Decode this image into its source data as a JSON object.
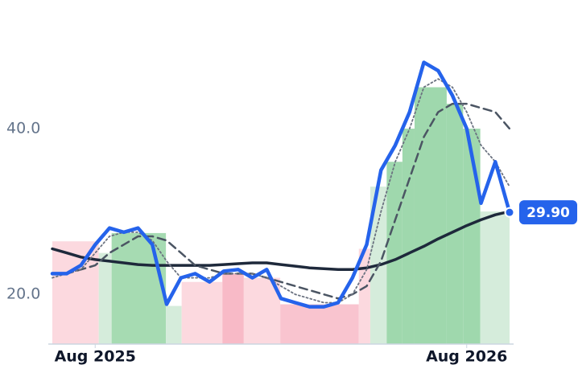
{
  "chart_data": {
    "type": "line",
    "x": [
      0,
      2,
      4,
      6,
      8,
      10,
      12,
      14,
      16,
      18,
      20,
      22,
      24,
      26,
      28,
      30,
      32,
      34,
      36,
      38,
      40,
      42,
      44,
      46,
      48,
      50,
      52,
      54,
      56,
      58,
      60,
      62,
      64
    ],
    "xlim": [
      0,
      64
    ],
    "xticks": [
      {
        "value": 6,
        "label": "Aug 2025"
      },
      {
        "value": 58,
        "label": "Aug 2026"
      }
    ],
    "ylim": [
      14,
      51
    ],
    "yticks": [
      {
        "value": 20,
        "label": "20.0"
      },
      {
        "value": 40,
        "label": "40.0"
      }
    ],
    "grid": false,
    "bands": [
      {
        "start": 0,
        "end": 6.5,
        "value": 26.4,
        "color": "#fcd9df"
      },
      {
        "start": 6.5,
        "end": 8.3,
        "value": 25,
        "color": "#d5ecdb"
      },
      {
        "start": 8.3,
        "end": 15.9,
        "value": 27.4,
        "color": "#a6dbb2"
      },
      {
        "start": 15.9,
        "end": 18.1,
        "value": 18.6,
        "color": "#d5ecdb"
      },
      {
        "start": 18.1,
        "end": 23.8,
        "value": 21.5,
        "color": "#fcd9df"
      },
      {
        "start": 23.8,
        "end": 26.8,
        "value": 22.5,
        "color": "#f8bac7"
      },
      {
        "start": 26.8,
        "end": 31.9,
        "value": 22,
        "color": "#fcd9df"
      },
      {
        "start": 31.9,
        "end": 42.9,
        "value": 18.8,
        "color": "#f9c4cf"
      },
      {
        "start": 42.9,
        "end": 44.5,
        "value": 25.5,
        "color": "#fcd9df"
      },
      {
        "start": 44.5,
        "end": 46.8,
        "value": 33,
        "color": "#d5ecdb"
      },
      {
        "start": 46.8,
        "end": 49,
        "value": 36,
        "color": "#9fd8ad"
      },
      {
        "start": 49,
        "end": 50.7,
        "value": 40,
        "color": "#9fd8ad"
      },
      {
        "start": 50.7,
        "end": 55.2,
        "value": 45,
        "color": "#9fd8ad"
      },
      {
        "start": 55.2,
        "end": 57.5,
        "value": 43,
        "color": "#9fd8ad"
      },
      {
        "start": 57.5,
        "end": 59.9,
        "value": 40,
        "color": "#9fd8ad"
      },
      {
        "start": 59.9,
        "end": 64,
        "value": 30,
        "color": "#d5ecdb"
      }
    ],
    "series": [
      {
        "color": "#1e293b",
        "style": "solid",
        "line_width": 3.5,
        "values": [
          25.5,
          25,
          24.5,
          24.2,
          24,
          23.8,
          23.6,
          23.5,
          23.5,
          23.5,
          23.5,
          23.5,
          23.6,
          23.7,
          23.8,
          23.8,
          23.6,
          23.4,
          23.2,
          23.1,
          23,
          23,
          23.2,
          23.6,
          24.2,
          25,
          25.8,
          26.7,
          27.5,
          28.3,
          29,
          29.6,
          30
        ]
      },
      {
        "color": "#4b5563",
        "style": "dashed",
        "line_width": 2.5,
        "values": [
          22.5,
          22.5,
          23,
          23.5,
          25,
          26,
          27,
          27,
          26.5,
          25,
          23.5,
          23,
          22.5,
          22.5,
          22.5,
          22,
          21.5,
          21,
          20.5,
          20,
          19.5,
          20,
          21,
          24,
          29,
          34,
          39,
          42,
          43,
          43,
          42.5,
          42,
          40
        ]
      },
      {
        "color": "#6b7280",
        "style": "dotted",
        "line_width": 1.8,
        "values": [
          22,
          22.5,
          23,
          25,
          27,
          27.5,
          27.5,
          26.5,
          24,
          22,
          22,
          22,
          22.5,
          22.5,
          22.5,
          22,
          21,
          20,
          19.5,
          19,
          19,
          20,
          23,
          30,
          36,
          40,
          45,
          46,
          45,
          42,
          38,
          36,
          33
        ]
      },
      {
        "color": "#2563eb",
        "style": "solid",
        "line_width": 4.5,
        "values": [
          22.5,
          22.5,
          23.5,
          26,
          28,
          27.5,
          28,
          26,
          18.8,
          22,
          22.5,
          21.5,
          22.8,
          23,
          22,
          23,
          19.5,
          19,
          18.5,
          18.5,
          19,
          22,
          26,
          35,
          38,
          42,
          48,
          47,
          44,
          40,
          31,
          36,
          29.9
        ],
        "value_labels": [
          null,
          null,
          null,
          null,
          null,
          null,
          null,
          null,
          null,
          null,
          null,
          null,
          null,
          null,
          null,
          null,
          null,
          null,
          null,
          null,
          null,
          null,
          null,
          null,
          null,
          null,
          null,
          null,
          null,
          null,
          null,
          null,
          "29.90"
        ]
      }
    ]
  }
}
